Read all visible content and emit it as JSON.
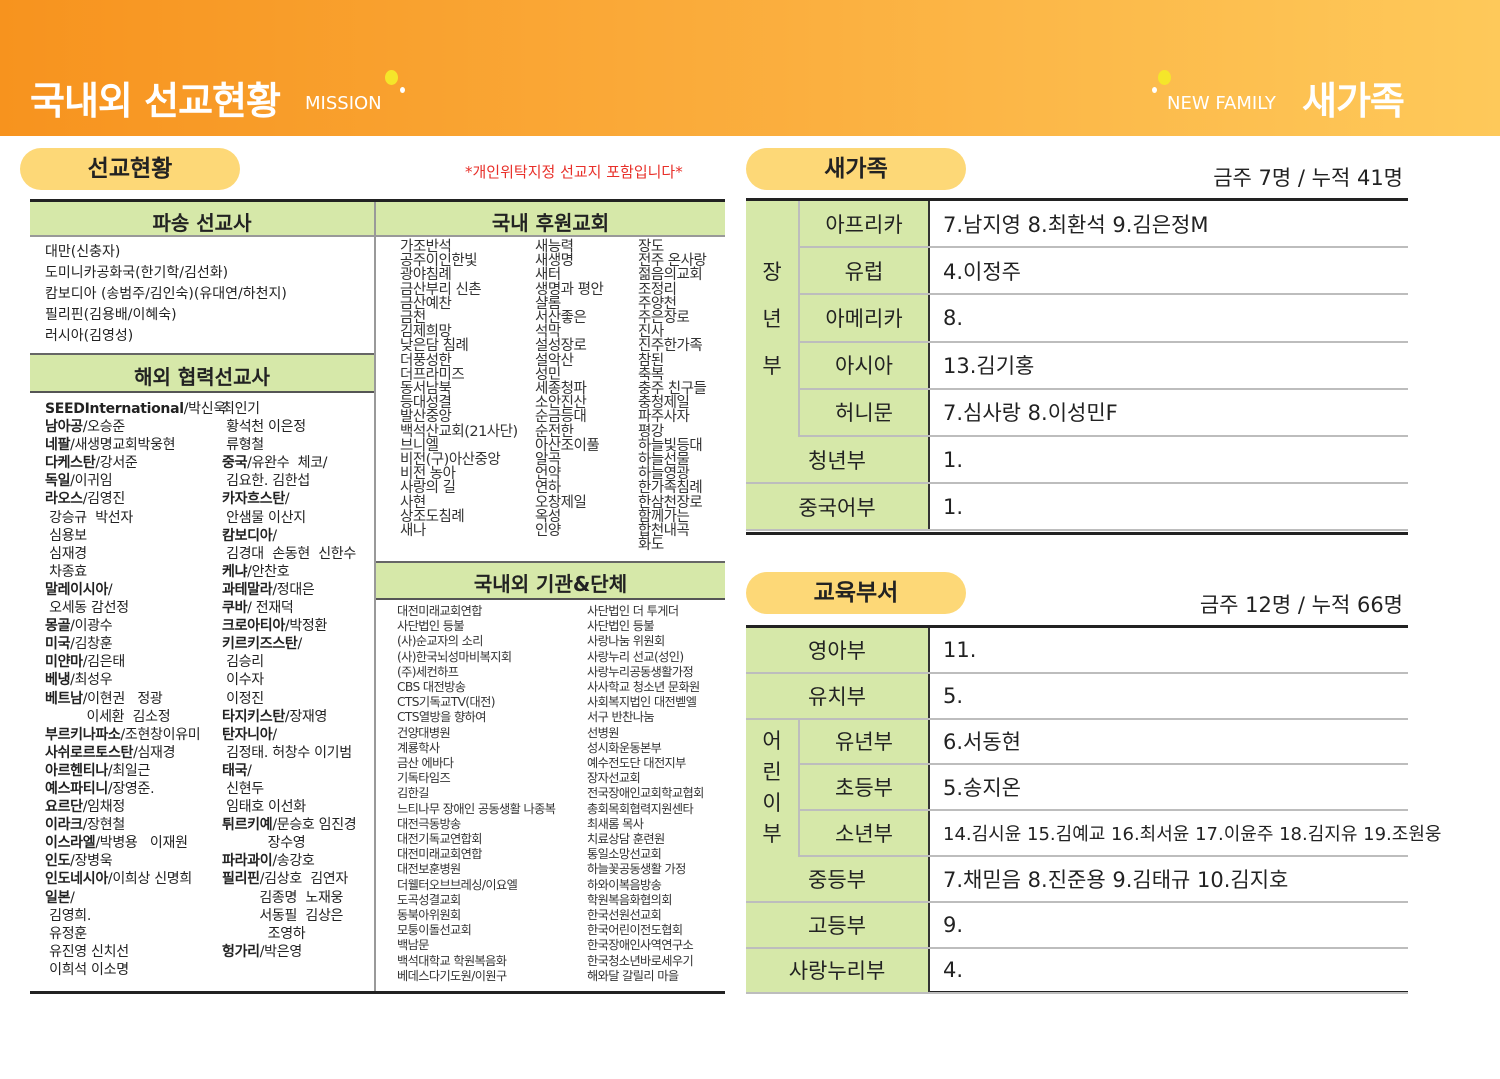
{
  "header": {
    "title_left": "국내외 선교현황",
    "sub_left": "MISSION",
    "sub_right": "NEW FAMILY",
    "title_right": "새가족",
    "colors": {
      "orange": "#f7931e",
      "yellow_dot": "#f5e62a"
    }
  },
  "mission": {
    "pill": "선교현황",
    "note": "*개인위탁지정 선교지 포함입니다*",
    "sent_header": "파송 선교사",
    "sent": [
      "대만(신충자)",
      "도미니카공화국(한기학/김선화)",
      "캄보디아 (송범주/김인숙)(유대연/하천지)",
      "필리핀(김용배/이혜숙)",
      "러시아(김영성)"
    ],
    "overseas_header": "해외 협력선교사",
    "overseas_col1": [
      {
        "b": "SEEDInternational",
        "r": "/박신욱"
      },
      {
        "b": "남아공",
        "r": "/오승준"
      },
      {
        "b": "네팔",
        "r": "/새생명교회박웅현"
      },
      {
        "b": "다케스탄",
        "r": "/강서준"
      },
      {
        "b": "독일",
        "r": "/이귀임"
      },
      {
        "b": "라오스",
        "r": "/김영진"
      },
      {
        "b": "",
        "r": " 강승규  박선자"
      },
      {
        "b": "",
        "r": " 심용보"
      },
      {
        "b": "",
        "r": " 심재경"
      },
      {
        "b": "",
        "r": " 차종효"
      },
      {
        "b": "말레이시아",
        "r": "/"
      },
      {
        "b": "",
        "r": " 오세동 감선정"
      },
      {
        "b": "몽골",
        "r": "/이광수"
      },
      {
        "b": "미국",
        "r": "/김창훈"
      },
      {
        "b": "미얀마",
        "r": "/김은태"
      },
      {
        "b": "베냉",
        "r": "/최성우"
      },
      {
        "b": "베트남",
        "r": "/이현권   정광"
      },
      {
        "b": "",
        "r": "          이세환  김소정"
      },
      {
        "b": "부르키나파소",
        "r": "/조현창이유미"
      },
      {
        "b": "사쉬로르토스탄",
        "r": "/심재경"
      },
      {
        "b": "아르헨티나",
        "r": "/최일근"
      },
      {
        "b": "예스파티니",
        "r": "/장영준."
      },
      {
        "b": "요르단",
        "r": "/임채정"
      },
      {
        "b": "이라크",
        "r": "/장현철"
      },
      {
        "b": "이스라엘",
        "r": "/박병용   이재원"
      },
      {
        "b": "인도",
        "r": "/장병욱"
      },
      {
        "b": "인도네시아",
        "r": "/이희상 신명희"
      },
      {
        "b": "일본",
        "r": "/"
      },
      {
        "b": "",
        "r": " 김영희."
      },
      {
        "b": "",
        "r": " 유정훈"
      },
      {
        "b": "",
        "r": " 유진영 신치선"
      },
      {
        "b": "",
        "r": " 이희석 이소명"
      }
    ],
    "overseas_col2": [
      {
        "b": "",
        "r": "최인기"
      },
      {
        "b": "",
        "r": " 황석천 이은정"
      },
      {
        "b": "",
        "r": " 류형철"
      },
      {
        "b": "중국",
        "r": "/유완수  체코/"
      },
      {
        "b": "",
        "r": " 김요한. 김한섭"
      },
      {
        "b": "카자흐스탄",
        "r": "/"
      },
      {
        "b": "",
        "r": " 안샘물 이산지"
      },
      {
        "b": "캄보디아",
        "r": "/"
      },
      {
        "b": "",
        "r": " 김경대  손동현  신한수"
      },
      {
        "b": "케냐",
        "r": "/안찬호"
      },
      {
        "b": "과테말라",
        "r": "/정대은"
      },
      {
        "b": "쿠바",
        "r": "/ 전재덕"
      },
      {
        "b": "크로아티아",
        "r": "/박정환"
      },
      {
        "b": "키르키즈스탄",
        "r": "/"
      },
      {
        "b": "",
        "r": " 김승리"
      },
      {
        "b": "",
        "r": " 이수자"
      },
      {
        "b": "",
        "r": " 이정진"
      },
      {
        "b": "타지키스탄",
        "r": "/장재영"
      },
      {
        "b": "탄자니아",
        "r": "/"
      },
      {
        "b": "",
        "r": " 김정태. 허창수 이기범"
      },
      {
        "b": "태국",
        "r": "/"
      },
      {
        "b": "",
        "r": " 신현두"
      },
      {
        "b": "",
        "r": " 임태호 이선화"
      },
      {
        "b": "튀르키예",
        "r": "/문승호 임진경"
      },
      {
        "b": "",
        "r": "           장수영"
      },
      {
        "b": "파라과이",
        "r": "/송강호"
      },
      {
        "b": "필리핀",
        "r": "/김상호  김연자"
      },
      {
        "b": "",
        "r": "         김종명  노재웅"
      },
      {
        "b": "",
        "r": "         서동필  김상은"
      },
      {
        "b": "",
        "r": "           조영하"
      },
      {
        "b": "헝가리",
        "r": "/박은영"
      }
    ],
    "domestic_header": "국내 후원교회",
    "domestic_cols": [
      [
        "가조반석",
        "공주이인한빛",
        "광야침례",
        "금산부리 신촌",
        "금산예찬",
        "금천",
        "김제희망",
        "낮은담 침례",
        "더풍성한",
        "더프라미즈",
        "동서남북",
        "등대성결",
        "발산중앙",
        "백석산교회(21사단)",
        "브니엘",
        "비전(구)아산중앙",
        "비전 농아",
        "사랑의 길",
        "사현",
        "상조도침례",
        "새나"
      ],
      [
        "새능력",
        "새생명",
        "새터",
        "생명과 평안",
        "샬롬",
        "서산좋은",
        "석막",
        "설성장로",
        "설악산",
        "성민",
        "세종청파",
        "소안진산",
        "순금등대",
        "순전한",
        "아산조이풀",
        "알곡",
        "언약",
        "연하",
        "오창제일",
        "옥성",
        "인양"
      ],
      [
        "장도",
        "전주 온사랑",
        "젊음의교회",
        "조정리",
        "주양천",
        "주은장로",
        "진사",
        "진주한가족",
        "참된",
        "축복",
        "충주 친구들",
        "충청제일",
        "파주사자",
        "평강",
        "하늘빛등대",
        "하늘선물",
        "하늘영광",
        "한가족침례",
        "한삼천장로",
        "함께가는",
        "합천내곡",
        "화도"
      ]
    ],
    "org_header": "국내외 기관&단체",
    "org_cols": [
      [
        "대전미래교회연합",
        "사단법인 등불",
        "(사)순교자의 소리",
        "(사)한국뇌성마비복지회",
        "(주)세컨하프",
        "CBS 대전방송",
        "CTS기독교TV(대전)",
        "CTS열방을 향하여",
        "건양대병원",
        "계룡학사",
        "금산 에바다",
        "기독타임즈",
        "김한길",
        "느티나무 장애인 공동생활 나종복",
        "대전극동방송",
        "대전기독교연합회",
        "대전미래교회연합",
        "대전보훈병원",
        "더웰터오브브레싱/이요엘",
        "도곡성결교회",
        "동북아위원회",
        "모퉁이돌선교회",
        "백남문",
        "백석대학교 학원복음화",
        "베데스다기도원/이원구"
      ],
      [
        "사단법인 더 투게더",
        "사단법인 등불",
        "사랑나눔 위원회",
        "사랑누리 선교(성인)",
        "사랑누리공동생활가정",
        "사사학교 청소년 문화원",
        "사회복지법인 대전벧엘",
        "서구 반찬나눔",
        "선병원",
        "성시화운동본부",
        "예수전도단 대전지부",
        "장자선교회",
        "전국장애인교회학교협회",
        "총회목회협력지원센타",
        "최새롬 목사",
        "치료상담 훈련원",
        "통일소망선교회",
        "하늘꽃공동생활 가정",
        "하와이복음방송",
        "학원복음화협의회",
        "한국선원선교회",
        "한국어린이전도협회",
        "한국장애인사역연구소",
        "한국청소년바로세우기",
        "해와달 갈릴리 마을"
      ]
    ]
  },
  "newfamily": {
    "pill": "새가족",
    "count": "금주 7명 / 누적 41명",
    "group_label": [
      "장",
      "년",
      "부"
    ],
    "group_rows": [
      {
        "label": "아프리카",
        "value": "7.남지영 8.최환석 9.김은정M"
      },
      {
        "label": "유럽",
        "value": "4.이정주"
      },
      {
        "label": "아메리카",
        "value": "8."
      },
      {
        "label": "아시아",
        "value": "13.김기홍"
      },
      {
        "label": "허니문",
        "value": "7.심사랑 8.이성민F"
      }
    ],
    "rows": [
      {
        "label": "청년부",
        "value": "1."
      },
      {
        "label": "중국어부",
        "value": "1."
      }
    ]
  },
  "education": {
    "pill": "교육부서",
    "count": "금주 12명   / 누적  66명",
    "top_rows": [
      {
        "label": "영아부",
        "value": "11."
      },
      {
        "label": "유치부",
        "value": "5."
      }
    ],
    "group_label": [
      "어",
      "린",
      "이",
      "부"
    ],
    "group_rows": [
      {
        "label": "유년부",
        "value": "6.서동현"
      },
      {
        "label": "초등부",
        "value": "5.송지온"
      },
      {
        "label": "소년부",
        "value": "14.김시윤 15.김예교 16.최서윤 17.이윤주 18.김지유 19.조원웅"
      }
    ],
    "bottom_rows": [
      {
        "label": "중등부",
        "value": "7.채믿음 8.진준용 9.김태규 10.김지호"
      },
      {
        "label": "고등부",
        "value": "9."
      },
      {
        "label": "사랑누리부",
        "value": "4."
      }
    ]
  }
}
